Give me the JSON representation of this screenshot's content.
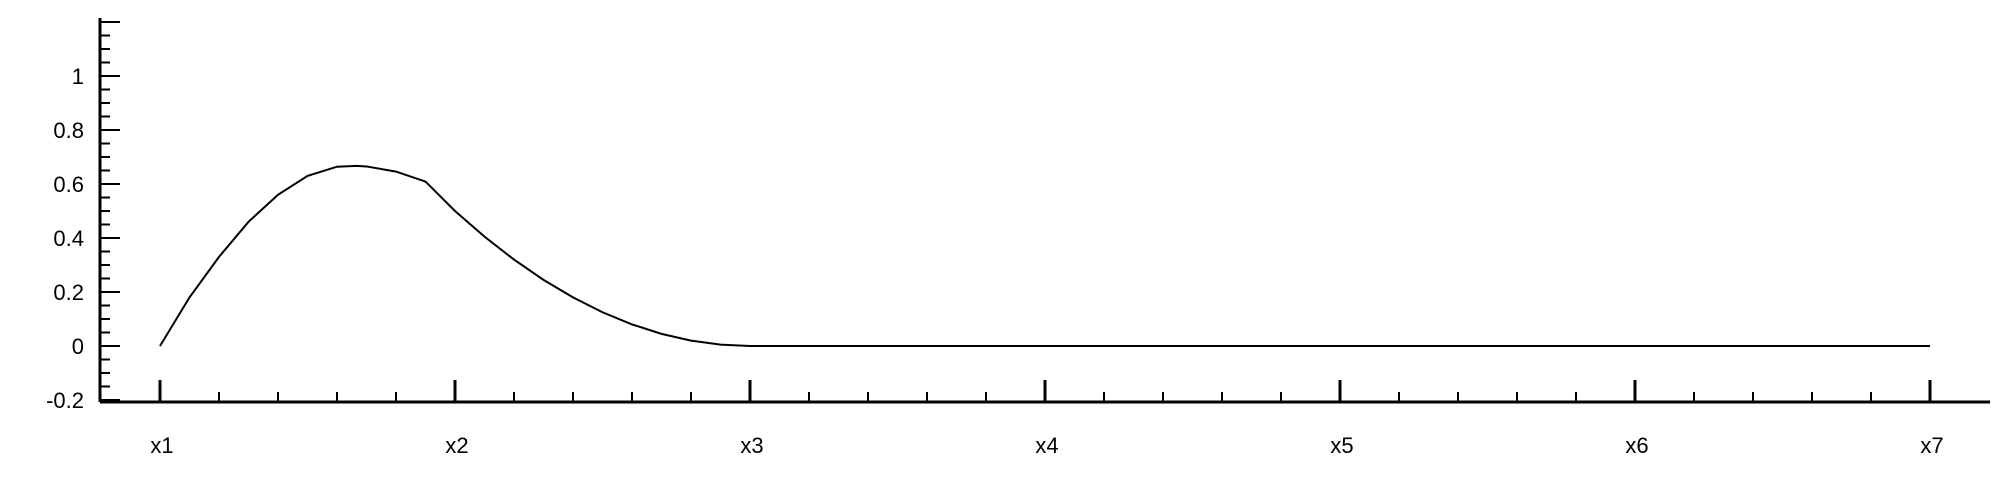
{
  "chart_data": {
    "type": "line",
    "title": "",
    "xlabel": "",
    "ylabel": "",
    "x_categories": [
      "x1",
      "x2",
      "x3",
      "x4",
      "x5",
      "x6",
      "x7"
    ],
    "xlim": [
      1,
      7
    ],
    "ylim": [
      -0.2,
      1.2
    ],
    "y_ticks": [
      -0.2,
      0,
      0.2,
      0.4,
      0.6,
      0.8,
      1
    ],
    "y_tick_labels": [
      "-0.2",
      "0",
      "0.2",
      "0.4",
      "0.6",
      "0.8",
      "1"
    ],
    "grid": false,
    "legend": "none",
    "line_color": "#000000",
    "series": [
      {
        "x": [
          1.0,
          1.1,
          1.2,
          1.3,
          1.4,
          1.5,
          1.6,
          1.667,
          1.7,
          1.8,
          1.9,
          2.0,
          2.1,
          2.2,
          2.3,
          2.4,
          2.5,
          2.6,
          2.7,
          2.8,
          2.9,
          3.0,
          4.0,
          5.0,
          6.0,
          7.0
        ],
        "y": [
          0.0,
          0.18,
          0.33,
          0.46,
          0.56,
          0.63,
          0.664,
          0.667,
          0.665,
          0.646,
          0.609,
          0.5,
          0.405,
          0.32,
          0.245,
          0.18,
          0.125,
          0.08,
          0.045,
          0.02,
          0.005,
          0.0,
          0.0,
          0.0,
          0.0,
          0.0
        ]
      }
    ]
  }
}
